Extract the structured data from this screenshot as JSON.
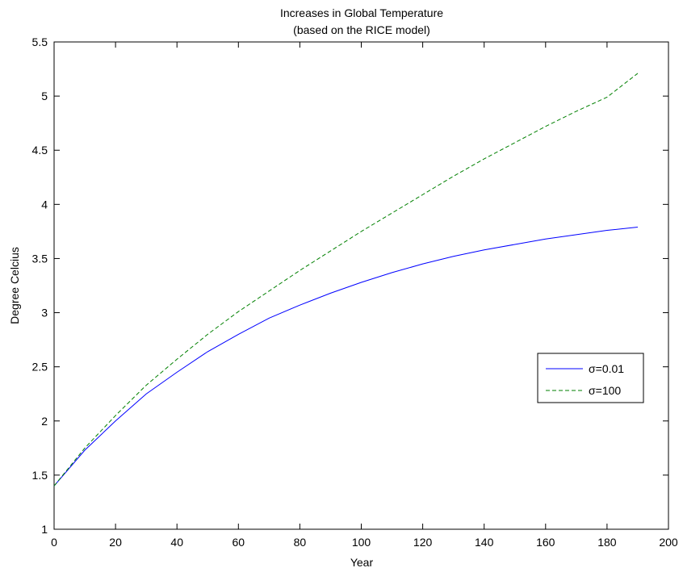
{
  "chart_data": {
    "type": "line",
    "title": "Increases in Global Temperature",
    "subtitle": "(based on the RICE model)",
    "xlabel": "Year",
    "ylabel": "Degree Celcius",
    "xlim": [
      0,
      200
    ],
    "ylim": [
      1,
      5.5
    ],
    "xticks": [
      "0",
      "20",
      "40",
      "60",
      "80",
      "100",
      "120",
      "140",
      "160",
      "180",
      "200"
    ],
    "yticks": [
      "1",
      "1.5",
      "2",
      "2.5",
      "3",
      "3.5",
      "4",
      "4.5",
      "5",
      "5.5"
    ],
    "grid": false,
    "legend_position": "right",
    "x": [
      0,
      10,
      20,
      30,
      40,
      50,
      60,
      70,
      80,
      90,
      100,
      110,
      120,
      130,
      140,
      150,
      160,
      170,
      180,
      190
    ],
    "series": [
      {
        "name": "σ=0.01",
        "color": "#0000ff",
        "style": "solid",
        "values": [
          1.4,
          1.73,
          2.0,
          2.25,
          2.45,
          2.64,
          2.8,
          2.95,
          3.07,
          3.18,
          3.28,
          3.37,
          3.45,
          3.52,
          3.58,
          3.63,
          3.68,
          3.72,
          3.76,
          3.79
        ]
      },
      {
        "name": "σ=100",
        "color": "#008000",
        "style": "dashed",
        "values": [
          1.4,
          1.75,
          2.05,
          2.33,
          2.57,
          2.8,
          3.01,
          3.2,
          3.39,
          3.57,
          3.75,
          3.92,
          4.09,
          4.26,
          4.42,
          4.57,
          4.72,
          4.86,
          4.99,
          5.21
        ]
      }
    ]
  }
}
